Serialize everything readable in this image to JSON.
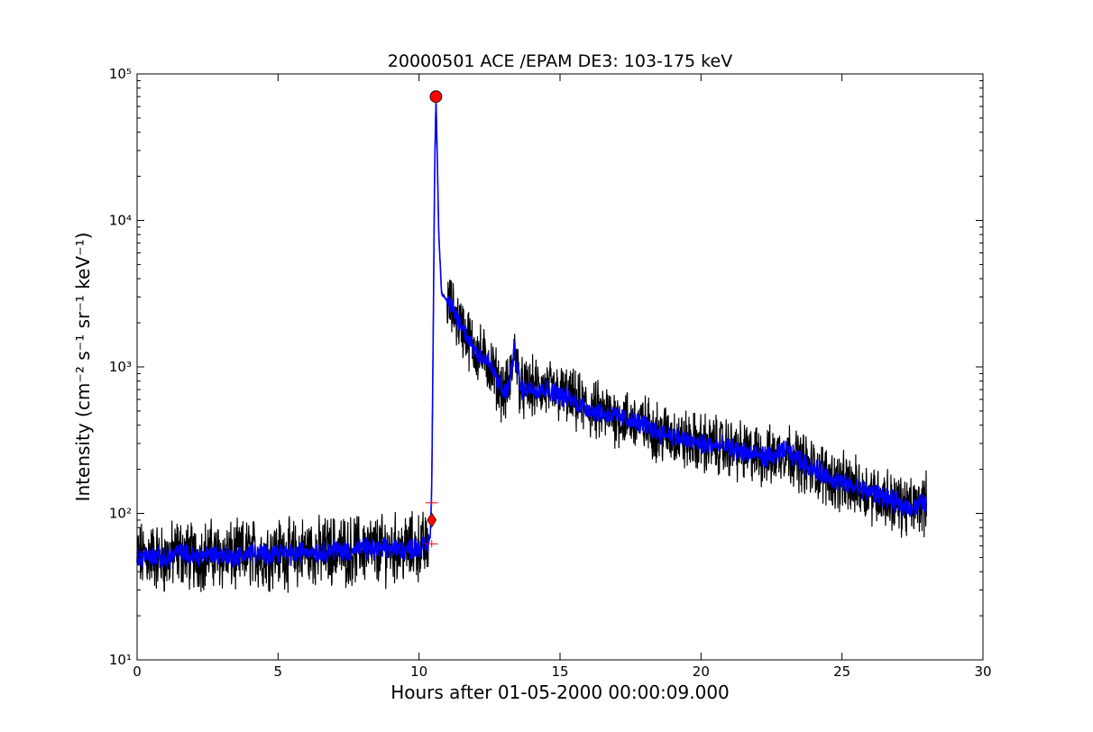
{
  "chart_data": {
    "type": "line",
    "title": "20000501 ACE /EPAM DE3: 103-175 keV",
    "xlabel": "Hours after 01-05-2000 00:00:09.000",
    "ylabel": "Intensity (cm⁻² s⁻¹ sr⁻¹ keV⁻¹)",
    "xlim": [
      0,
      30
    ],
    "ylim": [
      10,
      100000
    ],
    "yscale": "log",
    "grid": false,
    "x_ticks": [
      0,
      5,
      10,
      15,
      20,
      25,
      30
    ],
    "x_tick_labels": [
      "0",
      "5",
      "10",
      "15",
      "20",
      "25",
      "30"
    ],
    "y_ticks": [
      10,
      100,
      1000,
      10000,
      100000
    ],
    "y_tick_labels": [
      "10¹",
      "10²",
      "10³",
      "10⁴",
      "10⁵"
    ],
    "series": [
      {
        "color": "#000000",
        "style": "raw",
        "x": [
          0.0,
          0.5,
          1.0,
          1.5,
          2.0,
          2.5,
          3.0,
          3.5,
          4.0,
          4.5,
          5.0,
          5.5,
          6.0,
          6.5,
          7.0,
          7.5,
          8.0,
          8.5,
          9.0,
          9.5,
          10.0,
          10.3,
          10.4,
          10.45,
          10.5,
          10.55,
          10.6,
          10.65,
          10.7,
          10.8,
          10.9,
          11.0,
          11.5,
          12.0,
          12.5,
          12.8,
          13.0,
          13.2,
          13.4,
          13.6,
          14.0,
          14.5,
          15.0,
          15.5,
          16.0,
          16.5,
          17.0,
          17.5,
          18.0,
          18.5,
          19.0,
          19.5,
          20.0,
          20.5,
          21.0,
          21.5,
          22.0,
          22.5,
          23.0,
          23.5,
          24.0,
          24.5,
          25.0,
          25.5,
          26.0,
          26.5,
          27.0,
          27.5,
          28.0
        ],
        "y": [
          50,
          52,
          48,
          55,
          50,
          53,
          52,
          50,
          54,
          52,
          55,
          52,
          56,
          54,
          57,
          55,
          58,
          56,
          58,
          57,
          59,
          60,
          70,
          150,
          1500,
          20000,
          70000,
          25000,
          8000,
          3200,
          3000,
          2800,
          1900,
          1300,
          1050,
          800,
          650,
          750,
          1350,
          700,
          720,
          700,
          650,
          580,
          520,
          480,
          460,
          430,
          400,
          360,
          340,
          310,
          300,
          290,
          280,
          260,
          250,
          240,
          270,
          230,
          200,
          180,
          160,
          150,
          140,
          130,
          115,
          110,
          120
        ]
      },
      {
        "color": "#0000ff",
        "style": "smoothed",
        "x": [
          0.0,
          0.5,
          1.0,
          1.5,
          2.0,
          2.5,
          3.0,
          3.5,
          4.0,
          4.5,
          5.0,
          5.5,
          6.0,
          6.5,
          7.0,
          7.5,
          8.0,
          8.5,
          9.0,
          9.5,
          10.0,
          10.3,
          10.4,
          10.45,
          10.5,
          10.55,
          10.6,
          10.65,
          10.7,
          10.8,
          10.9,
          11.0,
          11.5,
          12.0,
          12.5,
          12.8,
          13.0,
          13.2,
          13.4,
          13.6,
          14.0,
          14.5,
          15.0,
          15.5,
          16.0,
          16.5,
          17.0,
          17.5,
          18.0,
          18.5,
          19.0,
          19.5,
          20.0,
          20.5,
          21.0,
          21.5,
          22.0,
          22.5,
          23.0,
          23.5,
          24.0,
          24.5,
          25.0,
          25.5,
          26.0,
          26.5,
          27.0,
          27.5,
          28.0
        ],
        "y": [
          50,
          52,
          48,
          55,
          50,
          53,
          52,
          50,
          54,
          52,
          55,
          52,
          56,
          54,
          57,
          55,
          58,
          56,
          58,
          57,
          59,
          60,
          70,
          150,
          1500,
          20000,
          70000,
          25000,
          8000,
          3200,
          3000,
          2800,
          1900,
          1300,
          1050,
          800,
          650,
          750,
          1350,
          700,
          720,
          700,
          650,
          580,
          520,
          480,
          460,
          430,
          400,
          360,
          340,
          310,
          300,
          290,
          280,
          260,
          250,
          240,
          270,
          230,
          200,
          180,
          160,
          150,
          140,
          130,
          115,
          110,
          120
        ]
      }
    ],
    "markers": [
      {
        "shape": "circle",
        "color": "#ff0000",
        "x": 10.6,
        "y": 70000
      },
      {
        "shape": "diamond",
        "color": "#ff0000",
        "x": 10.45,
        "y": 90
      },
      {
        "shape": "plus",
        "color": "#ff0000",
        "x": 10.45,
        "y": 118
      },
      {
        "shape": "plus",
        "color": "#ff0000",
        "x": 10.45,
        "y": 62
      }
    ]
  }
}
